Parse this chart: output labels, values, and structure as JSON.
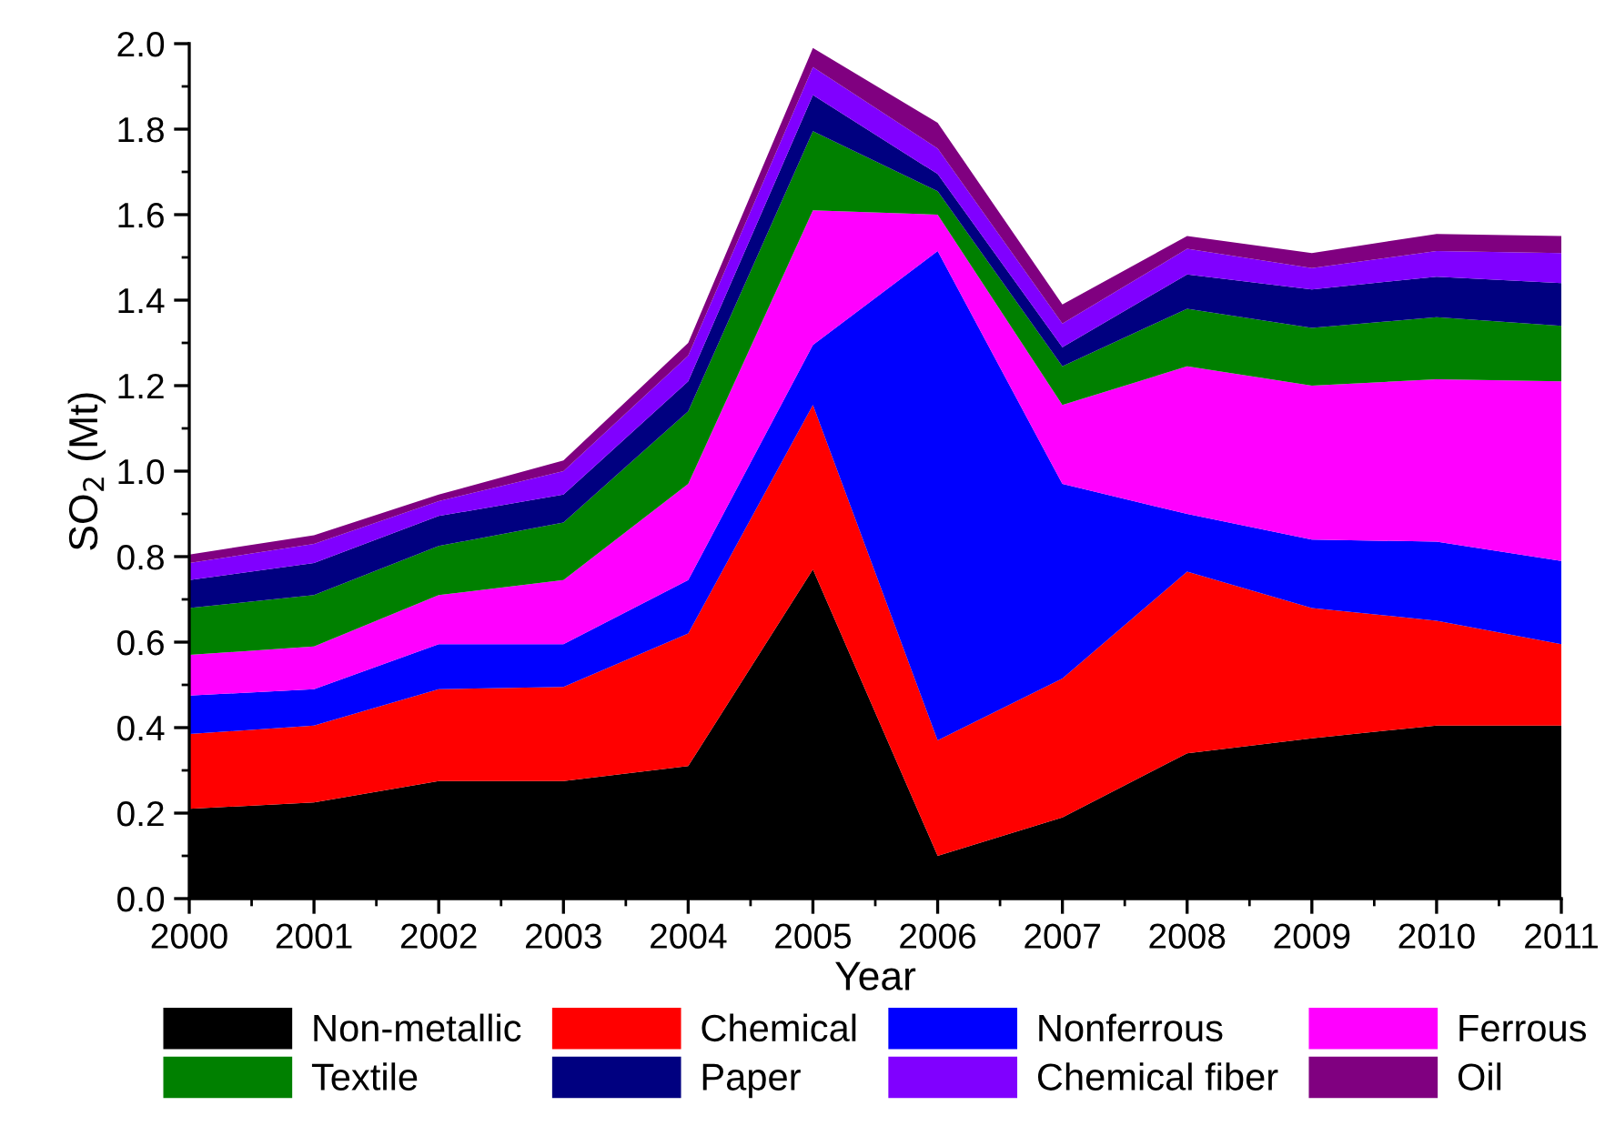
{
  "chart_data": {
    "type": "area",
    "stacked": true,
    "xlabel": "Year",
    "ylabel": "SO$_{2}$ (Mt)",
    "x": [
      2000,
      2001,
      2002,
      2003,
      2004,
      2005,
      2006,
      2007,
      2008,
      2009,
      2010,
      2011
    ],
    "xlim": [
      2000,
      2011
    ],
    "xticks": [
      2000,
      2001,
      2002,
      2003,
      2004,
      2005,
      2006,
      2007,
      2008,
      2009,
      2010,
      2011
    ],
    "ylim": [
      0,
      2.0
    ],
    "yticks": [
      {
        "value": 0,
        "label": "0.0"
      },
      {
        "value": 0.2,
        "label": "0.2"
      },
      {
        "value": 0.4,
        "label": "0.4"
      },
      {
        "value": 0.6,
        "label": "0.6"
      },
      {
        "value": 0.8,
        "label": "0.8"
      },
      {
        "value": 1.0,
        "label": "1.0"
      },
      {
        "value": 1.2,
        "label": "1.2"
      },
      {
        "value": 1.4,
        "label": "1.4"
      },
      {
        "value": 1.6,
        "label": "1.6"
      },
      {
        "value": 1.8,
        "label": "1.8"
      },
      {
        "value": 2.0,
        "label": "2.0"
      }
    ],
    "grid": false,
    "legend": "bottom",
    "series": [
      {
        "name": "Non-metallic",
        "color": "#000000",
        "values": [
          0.21,
          0.225,
          0.275,
          0.275,
          0.31,
          0.77,
          0.1,
          0.19,
          0.34,
          0.375,
          0.405,
          0.405
        ]
      },
      {
        "name": "Chemical",
        "color": "#ff0000",
        "values": [
          0.175,
          0.18,
          0.215,
          0.22,
          0.31,
          0.385,
          0.27,
          0.325,
          0.425,
          0.305,
          0.245,
          0.19
        ]
      },
      {
        "name": "Nonferrous",
        "color": "#0000ff",
        "values": [
          0.09,
          0.085,
          0.105,
          0.1,
          0.125,
          0.14,
          1.145,
          0.455,
          0.135,
          0.16,
          0.185,
          0.195
        ]
      },
      {
        "name": "Ferrous",
        "color": "#ff00ff",
        "values": [
          0.095,
          0.1,
          0.115,
          0.15,
          0.225,
          0.315,
          0.085,
          0.185,
          0.345,
          0.36,
          0.38,
          0.42
        ]
      },
      {
        "name": "Textile",
        "color": "#008000",
        "values": [
          0.11,
          0.12,
          0.115,
          0.135,
          0.17,
          0.185,
          0.055,
          0.09,
          0.135,
          0.135,
          0.145,
          0.13
        ]
      },
      {
        "name": "Paper",
        "color": "#000080",
        "values": [
          0.065,
          0.075,
          0.07,
          0.065,
          0.07,
          0.085,
          0.04,
          0.045,
          0.08,
          0.09,
          0.095,
          0.1
        ]
      },
      {
        "name": "Chemical fiber",
        "color": "#8000ff",
        "values": [
          0.04,
          0.045,
          0.035,
          0.055,
          0.06,
          0.065,
          0.06,
          0.055,
          0.06,
          0.05,
          0.06,
          0.07
        ]
      },
      {
        "name": "Oil",
        "color": "#800080",
        "values": [
          0.02,
          0.02,
          0.015,
          0.025,
          0.03,
          0.045,
          0.06,
          0.045,
          0.03,
          0.035,
          0.04,
          0.04
        ]
      }
    ]
  }
}
